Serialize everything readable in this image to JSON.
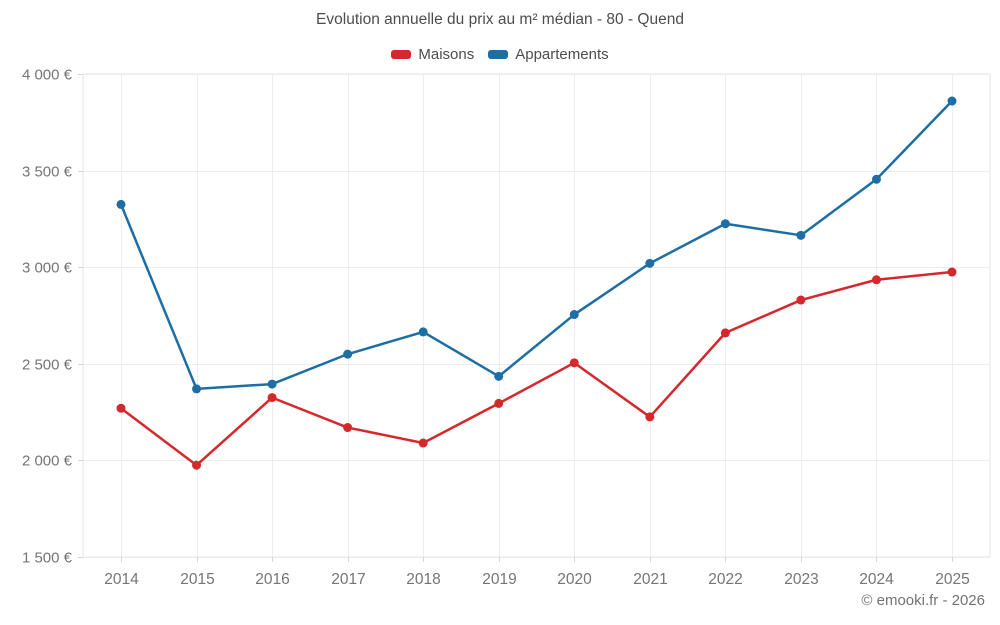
{
  "header": {
    "title": "Evolution annuelle du prix au m² médian - 80 - Quend"
  },
  "footer": {
    "copyright": "© emooki.fr - 2026"
  },
  "chart_data": {
    "type": "line",
    "title": "Evolution annuelle du prix au m² médian - 80 - Quend",
    "categories": [
      "2014",
      "2015",
      "2016",
      "2017",
      "2018",
      "2019",
      "2020",
      "2021",
      "2022",
      "2023",
      "2024",
      "2025"
    ],
    "series": [
      {
        "name": "Maisons",
        "color": "#d5282d",
        "values": [
          2270,
          1975,
          2325,
          2170,
          2090,
          2295,
          2505,
          2225,
          2660,
          2830,
          2935,
          2975
        ]
      },
      {
        "name": "Appartements",
        "color": "#1c6ea4",
        "values": [
          3325,
          2370,
          2395,
          2550,
          2665,
          2435,
          2755,
          3020,
          3225,
          3165,
          3455,
          3860
        ]
      }
    ],
    "xlabel": "",
    "ylabel": "",
    "ylim": [
      1500,
      4000
    ],
    "y_ticks": [
      1500,
      2000,
      2500,
      3000,
      3500,
      4000
    ],
    "y_tick_labels": [
      "1 500 €",
      "2 000 €",
      "2 500 €",
      "3 000 €",
      "3 500 €",
      "4 000 €"
    ],
    "grid": true,
    "legend_position": "top",
    "point_radius": 4.5,
    "line_width": 2.5,
    "colors": {
      "grid": "#ededed",
      "plot_border": "#e3e3e3",
      "tick": "#d6d6d6",
      "axis_text": "#757575",
      "title_text": "#4d4d4d",
      "copyright_text": "#737373",
      "background": "#ffffff"
    }
  }
}
